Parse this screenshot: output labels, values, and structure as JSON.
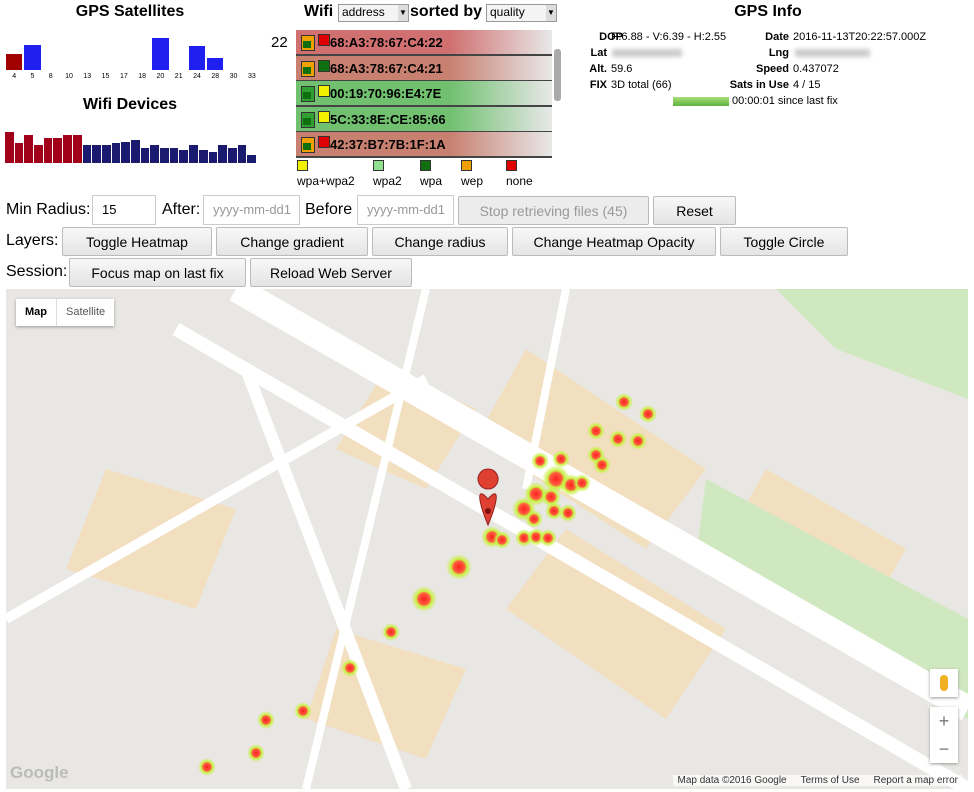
{
  "gps_satellites": {
    "title": "GPS Satellites",
    "labels": [
      "4",
      "5",
      "8",
      "10",
      "13",
      "15",
      "17",
      "18",
      "20",
      "21",
      "24",
      "28",
      "30",
      "33"
    ],
    "values": [
      16,
      25,
      0,
      0,
      0,
      0,
      0,
      0,
      32,
      0,
      24,
      12,
      0,
      0
    ],
    "colors": [
      "#a00000",
      "#1f1ff0",
      "#1f1ff0",
      "#1f1ff0",
      "#1f1ff0",
      "#1f1ff0",
      "#1f1ff0",
      "#1f1ff0",
      "#1f1ff0",
      "#1f1ff0",
      "#1f1ff0",
      "#1f1ff0",
      "#1f1ff0",
      "#1f1ff0"
    ]
  },
  "wifi_devices": {
    "title": "Wifi Devices",
    "values": [
      31,
      20,
      28,
      18,
      25,
      25,
      28,
      28,
      18,
      18,
      18,
      20,
      21,
      23,
      15,
      18,
      15,
      15,
      13,
      18,
      13,
      11,
      18,
      15,
      18,
      8
    ],
    "colors": [
      "#a00018",
      "#a00018",
      "#a00018",
      "#a00018",
      "#a00018",
      "#a00018",
      "#a00018",
      "#a00018",
      "#1a1a6e",
      "#1a1a6e",
      "#1a1a6e",
      "#1a1a6e",
      "#1a1a6e",
      "#1a1a6e",
      "#1a1a6e",
      "#1a1a6e",
      "#1a1a6e",
      "#1a1a6e",
      "#1a1a6e",
      "#1a1a6e",
      "#1a1a6e",
      "#1a1a6e",
      "#1a1a6e",
      "#1a1a6e",
      "#1a1a6e",
      "#1a1a6e"
    ]
  },
  "wifi": {
    "title": "Wifi",
    "sort_field": "address",
    "sorted_by_label": "sorted by",
    "sort_order": "quality",
    "count": "22",
    "entries": [
      {
        "mac": "68:A3:78:67:C4:22",
        "icon": "#f0a000",
        "enc": "#e00000",
        "bg": "#d07070"
      },
      {
        "mac": "68:A3:78:67:C4:21",
        "icon": "#f0a000",
        "enc": "#107010",
        "bg": "#c88070"
      },
      {
        "mac": "00:19:70:96:E4:7E",
        "icon": "#30a030",
        "enc": "#f0f000",
        "bg": "#70c070"
      },
      {
        "mac": "5C:33:8E:CE:85:66",
        "icon": "#30a030",
        "enc": "#f0f000",
        "bg": "#70c070"
      },
      {
        "mac": "42:37:B7:7B:1F:1A",
        "icon": "#f0a000",
        "enc": "#e00000",
        "bg": "#c88070"
      }
    ],
    "legend": [
      {
        "label": "wpa+wpa2",
        "color": "#f0f000"
      },
      {
        "label": "wpa2",
        "color": "#90e090"
      },
      {
        "label": "wpa",
        "color": "#107010"
      },
      {
        "label": "wep",
        "color": "#f0a000"
      },
      {
        "label": "none",
        "color": "#e00000"
      }
    ]
  },
  "gps_info": {
    "title": "GPS Info",
    "dop_label": "DOP",
    "dop": "P:6.88 - V:6.39 - H:2.55",
    "date_label": "Date",
    "date": "2016-11-13T20:22:57.000Z",
    "lat_label": "Lat",
    "lng_label": "Lng",
    "alt_label": "Alt.",
    "alt": "59.6",
    "speed_label": "Speed",
    "speed": "0.437072",
    "fix_label": "FIX",
    "fix": "3D total (66)",
    "sats_label": "Sats in Use",
    "sats": "4 / 15",
    "last_fix": "00:00:01 since last fix"
  },
  "controls": {
    "min_radius_label": "Min Radius:",
    "min_radius": "15",
    "after_label": "After:",
    "after_placeholder": "yyyy-mm-dd1",
    "before_label": "Before",
    "before_placeholder": "yyyy-mm-dd1",
    "stop_button": "Stop retrieving files (45)",
    "reset_button": "Reset",
    "layers_label": "Layers:",
    "layer_buttons": [
      "Toggle Heatmap",
      "Change gradient",
      "Change radius",
      "Change Heatmap Opacity",
      "Toggle Circle"
    ],
    "session_label": "Session:",
    "session_buttons": [
      "Focus map on last fix",
      "Reload Web Server"
    ]
  },
  "map": {
    "tabs": [
      "Map",
      "Satellite"
    ],
    "logo": "Google",
    "footer": [
      "Map data ©2016 Google",
      "Terms of Use",
      "Report a map error"
    ]
  }
}
